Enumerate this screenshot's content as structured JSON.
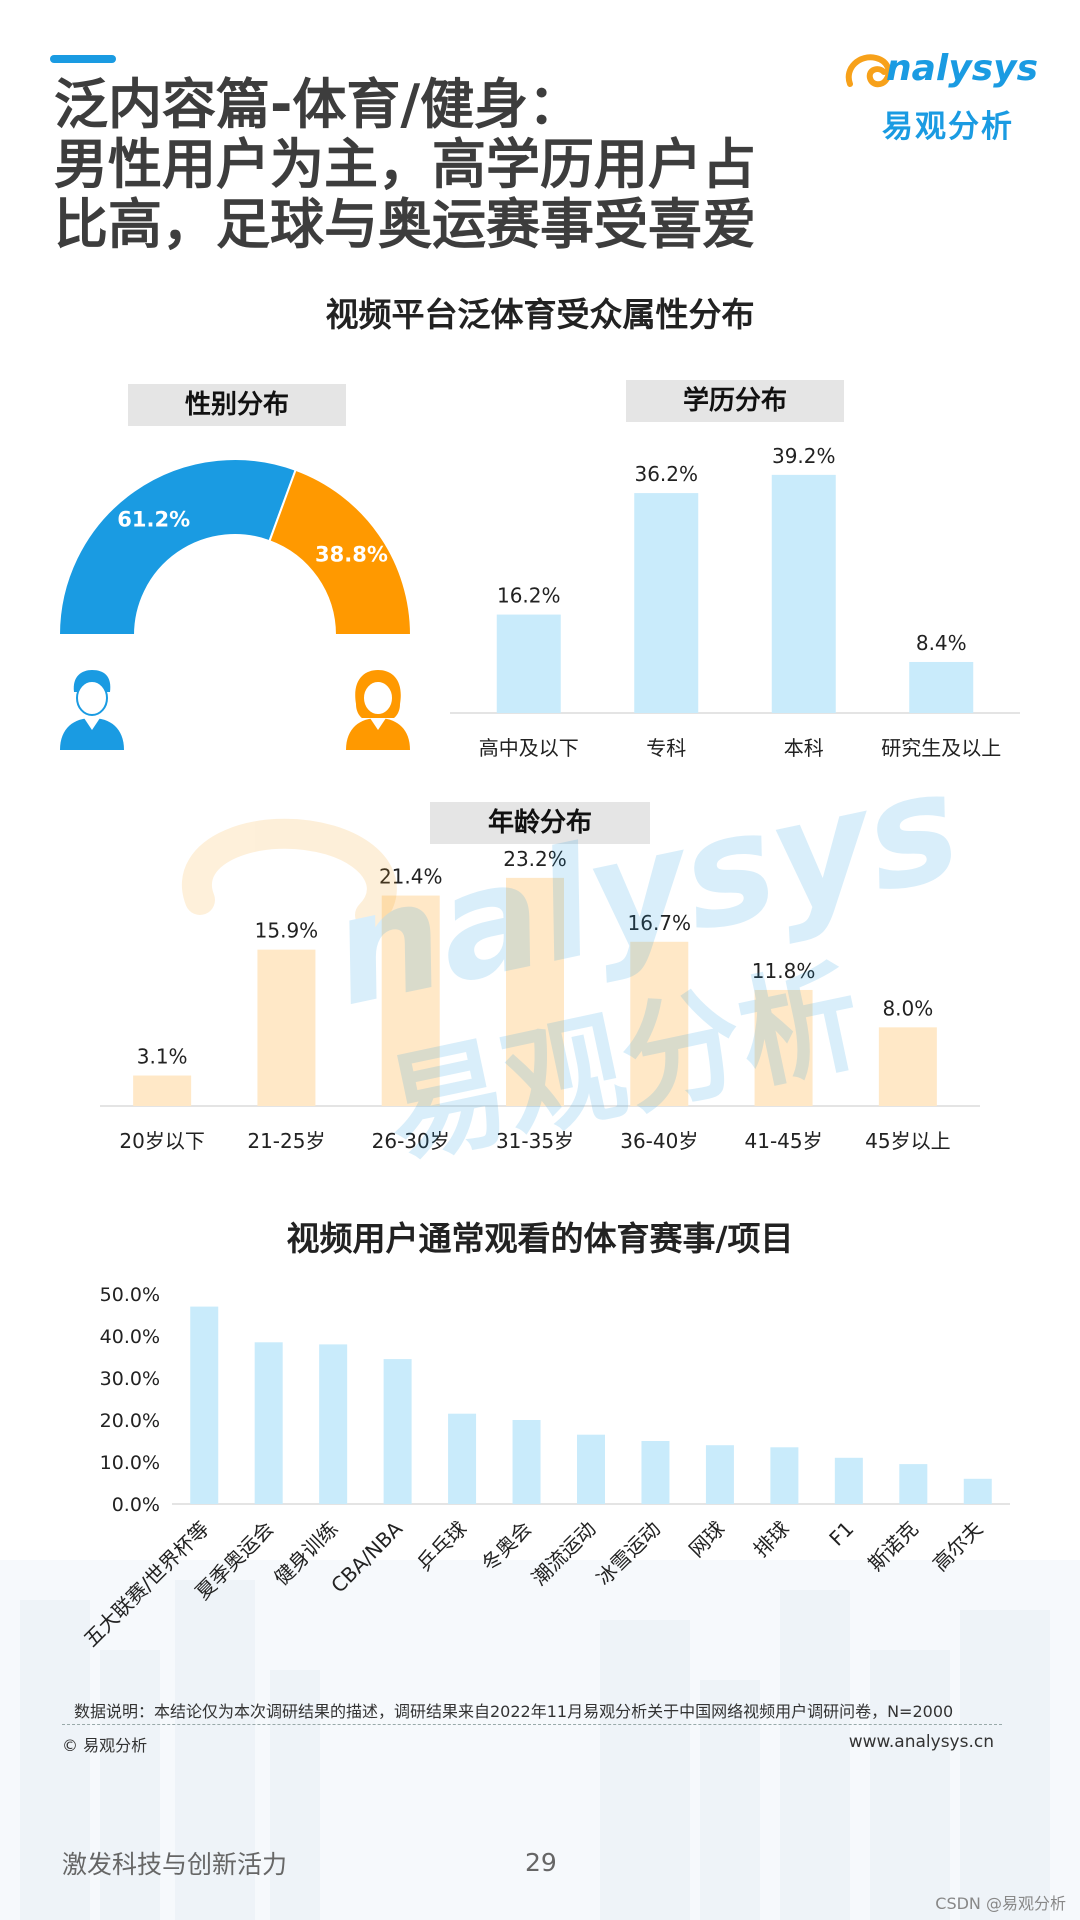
{
  "header": {
    "title_lines": [
      "泛内容篇-体育/健身：",
      "男性用户为主，高学历用户占",
      "比高，足球与奥运赛事受喜爱"
    ],
    "logo_text": "nalysys",
    "logo_cn": "易观分析",
    "brand_color": "#1a9be2",
    "logo_accent": "#f7a11a"
  },
  "section1": {
    "title": "视频平台泛体育受众属性分布"
  },
  "section2": {
    "title": "视频用户通常观看的体育赛事/项目"
  },
  "chart_data": [
    {
      "type": "pie",
      "title": "性别分布",
      "categories": [
        "男",
        "女"
      ],
      "values": [
        61.2,
        38.8
      ],
      "labels": [
        "61.2%",
        "38.8%"
      ],
      "colors": [
        "#1a9be2",
        "#ff9900"
      ],
      "icons": [
        "male-user-icon",
        "female-user-icon"
      ]
    },
    {
      "type": "bar",
      "title": "学历分布",
      "categories": [
        "高中及以下",
        "专科",
        "本科",
        "研究生及以上"
      ],
      "values": [
        16.2,
        36.2,
        39.2,
        8.4
      ],
      "labels": [
        "16.2%",
        "36.2%",
        "39.2%",
        "8.4%"
      ],
      "color": "#c9ebfb"
    },
    {
      "type": "bar",
      "title": "年龄分布",
      "categories": [
        "20岁以下",
        "21-25岁",
        "26-30岁",
        "31-35岁",
        "36-40岁",
        "41-45岁",
        "45岁以上"
      ],
      "values": [
        3.1,
        15.9,
        21.4,
        23.2,
        16.7,
        11.8,
        8.0
      ],
      "labels": [
        "3.1%",
        "15.9%",
        "21.4%",
        "23.2%",
        "16.7%",
        "11.8%",
        "8.0%"
      ],
      "color": "#ffe8c7"
    },
    {
      "type": "bar",
      "categories": [
        "五大联赛/世界杯等",
        "夏季奥运会",
        "健身训练",
        "CBA/NBA",
        "乒乓球",
        "冬奥会",
        "潮流运动",
        "冰雪运动",
        "网球",
        "排球",
        "F1",
        "斯诺克",
        "高尔夫"
      ],
      "values": [
        47.0,
        38.5,
        38.0,
        34.5,
        21.5,
        20.0,
        16.5,
        15.0,
        14.0,
        13.5,
        11.0,
        9.5,
        6.0
      ],
      "ylim": [
        0,
        50
      ],
      "yticks": [
        "0.0%",
        "10.0%",
        "20.0%",
        "30.0%",
        "40.0%",
        "50.0%"
      ],
      "color": "#c9ebfb"
    }
  ],
  "footer": {
    "note": "数据说明：本结论仅为本次调研结果的描述，调研结果来自2022年11月易观分析关于中国网络视频用户调研问卷，N=2000",
    "copyright": "© 易观分析",
    "website": "www.analysys.cn",
    "slogan": "激发科技与创新活力",
    "page_number": "29",
    "csdn": "CSDN @易观分析"
  },
  "watermark": {
    "text": "nalysys",
    "cn": "易观分析"
  }
}
